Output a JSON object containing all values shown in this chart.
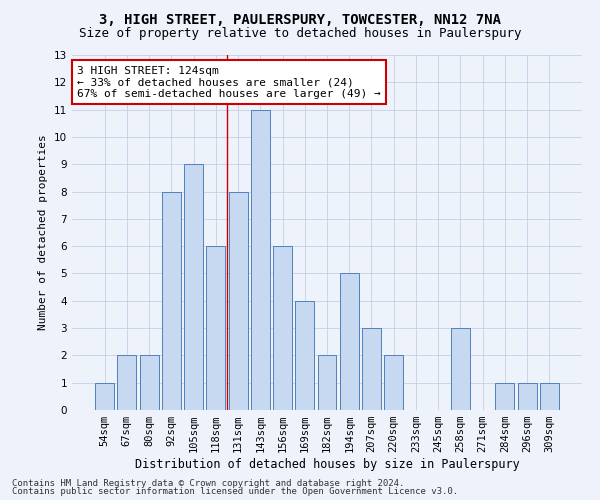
{
  "title1": "3, HIGH STREET, PAULERSPURY, TOWCESTER, NN12 7NA",
  "title2": "Size of property relative to detached houses in Paulerspury",
  "xlabel": "Distribution of detached houses by size in Paulerspury",
  "ylabel": "Number of detached properties",
  "categories": [
    "54sqm",
    "67sqm",
    "80sqm",
    "92sqm",
    "105sqm",
    "118sqm",
    "131sqm",
    "143sqm",
    "156sqm",
    "169sqm",
    "182sqm",
    "194sqm",
    "207sqm",
    "220sqm",
    "233sqm",
    "245sqm",
    "258sqm",
    "271sqm",
    "284sqm",
    "296sqm",
    "309sqm"
  ],
  "values": [
    1,
    2,
    2,
    8,
    9,
    6,
    8,
    11,
    6,
    4,
    2,
    5,
    3,
    2,
    0,
    0,
    3,
    0,
    1,
    1,
    1
  ],
  "bar_color": "#c6d9f1",
  "bar_edge_color": "#4f81bd",
  "reference_line_x": 5.5,
  "annotation_line1": "3 HIGH STREET: 124sqm",
  "annotation_line2": "← 33% of detached houses are smaller (24)",
  "annotation_line3": "67% of semi-detached houses are larger (49) →",
  "annotation_box_color": "#ffffff",
  "annotation_box_edge": "#cc0000",
  "ylim": [
    0,
    13
  ],
  "yticks": [
    0,
    1,
    2,
    3,
    4,
    5,
    6,
    7,
    8,
    9,
    10,
    11,
    12,
    13
  ],
  "footer1": "Contains HM Land Registry data © Crown copyright and database right 2024.",
  "footer2": "Contains public sector information licensed under the Open Government Licence v3.0.",
  "background_color": "#eef2fb",
  "plot_bg_color": "#eef2fb",
  "grid_color": "#bcc8e0",
  "ref_line_color": "#cc0000",
  "title1_fontsize": 10,
  "title2_fontsize": 9,
  "xlabel_fontsize": 8.5,
  "ylabel_fontsize": 8,
  "tick_fontsize": 7.5,
  "annotation_fontsize": 8,
  "footer_fontsize": 6.5
}
